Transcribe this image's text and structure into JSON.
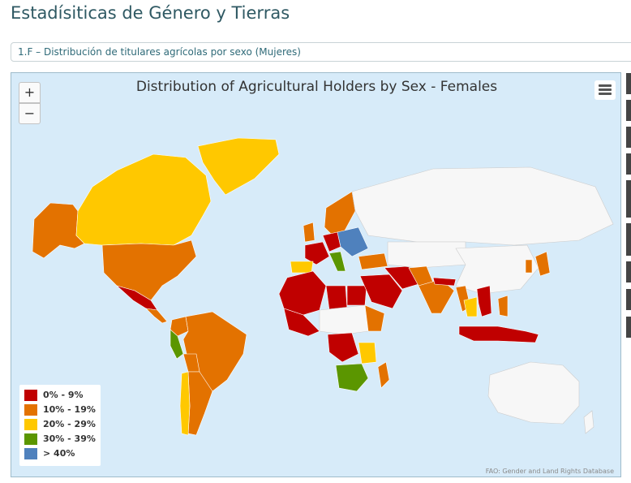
{
  "page": {
    "title": "Estadísiticas de Género y Tierras",
    "select_value": "1.F – Distribución de titulares agrícolas por sexo (Mujeres)"
  },
  "map": {
    "title": "Distribution of Agricultural Holders by Sex - Females",
    "zoom_in_label": "+",
    "zoom_out_label": "−",
    "credits": "FAO: Gender and Land Rights Database",
    "ocean_color": "#d7ebf9",
    "no_data_color": "#f7f7f7"
  },
  "chart_data": {
    "type": "choropleth",
    "title": "Distribution of Agricultural Holders by Sex - Females",
    "legend_placement": "bottom-left",
    "classes": [
      {
        "label": "0% - 9%",
        "color": "#c00000"
      },
      {
        "label": "10% - 19%",
        "color": "#e37200"
      },
      {
        "label": "20% - 29%",
        "color": "#ffc800"
      },
      {
        "label": "30% - 39%",
        "color": "#5b9600"
      },
      {
        "label": "> 40%",
        "color": "#4f81bd"
      }
    ]
  }
}
